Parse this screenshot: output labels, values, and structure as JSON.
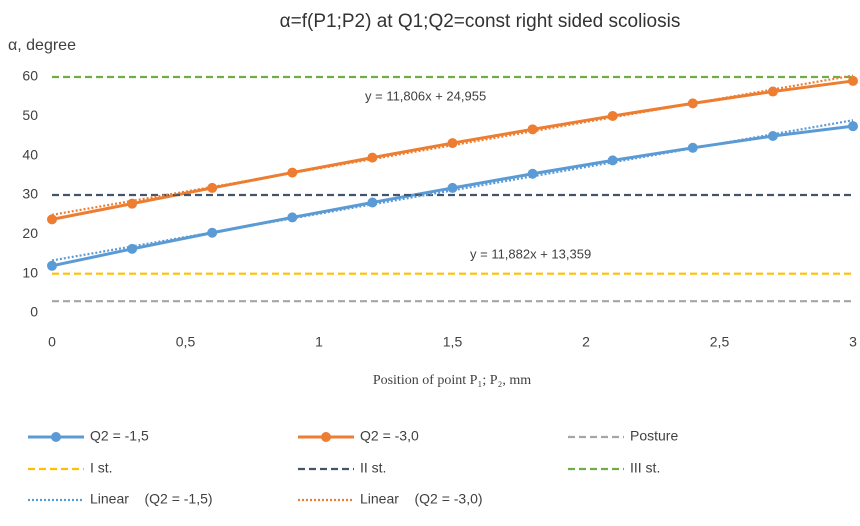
{
  "chart_data": {
    "type": "line",
    "title": "α=f(P1;P2) at Q1;Q2=const right sided scoliosis",
    "y_label": "α, degree",
    "x_label": "Position of point P₁; P₂, mm",
    "x": [
      0,
      0.3,
      0.6,
      0.9,
      1.2,
      1.5,
      1.8,
      2.1,
      2.4,
      2.7,
      3.0
    ],
    "xlim": [
      0,
      3
    ],
    "xticks": [
      0,
      {
        "value": 0.5,
        "label": "0,5"
      },
      1,
      {
        "value": 1.5,
        "label": "1,5"
      },
      2,
      {
        "value": 2.5,
        "label": "2,5"
      },
      3
    ],
    "ylim": [
      0,
      60
    ],
    "yticks": [
      0,
      10,
      20,
      30,
      40,
      50,
      60
    ],
    "grid": false,
    "series": [
      {
        "name": "Q2 = -1,5",
        "color": "#5b9bd5",
        "line": "solid",
        "markers": true,
        "values": [
          12,
          16.3,
          20.4,
          24.3,
          28.1,
          31.8,
          35.4,
          38.8,
          42,
          45,
          47.5
        ]
      },
      {
        "name": "Q2 = -3,0",
        "color": "#ed7d31",
        "line": "solid",
        "markers": true,
        "values": [
          23.8,
          27.8,
          31.8,
          35.7,
          39.5,
          43.2,
          46.7,
          50.1,
          53.3,
          56.3,
          59
        ]
      },
      {
        "name": "Posture",
        "color": "#a5a5a5",
        "line": "dashed",
        "value": 3
      },
      {
        "name": "I st.",
        "color": "#ffc000",
        "line": "dashed",
        "value": 10
      },
      {
        "name": "II st.",
        "color": "#44546a",
        "line": "dashed",
        "value": 30
      },
      {
        "name": "III st.",
        "color": "#70ad47",
        "line": "dashed",
        "value": 60
      },
      {
        "name": "Linear    (Q2 = -1,5)",
        "color": "#5b9bd5",
        "line": "dotted",
        "x": [
          0,
          3
        ],
        "values": [
          13.359,
          49.005
        ]
      },
      {
        "name": "Linear    (Q2 = -3,0)",
        "color": "#ed7d31",
        "line": "dotted",
        "x": [
          0,
          3
        ],
        "values": [
          24.955,
          60.373
        ]
      }
    ],
    "annotations": [
      "y = 11,806x + 24,955",
      "y = 11,882x + 13,359"
    ]
  }
}
